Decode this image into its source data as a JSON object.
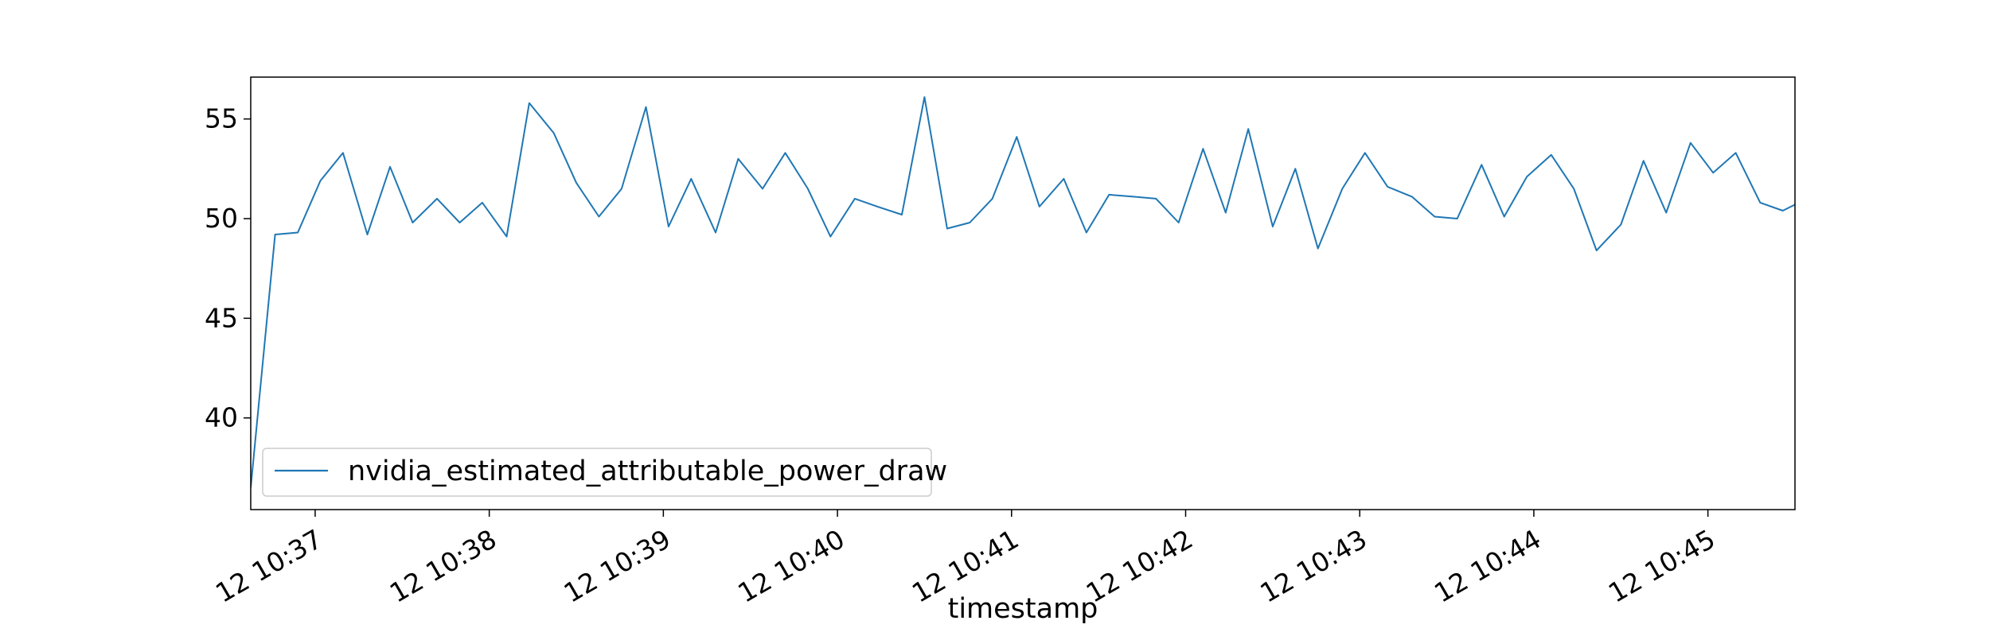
{
  "chart_data": {
    "type": "line",
    "xlabel": "timestamp",
    "ylabel": "",
    "x_tick_labels": [
      "12 10:37",
      "12 10:38",
      "12 10:39",
      "12 10:40",
      "12 10:41",
      "12 10:42",
      "12 10:43",
      "12 10:44",
      "12 10:45"
    ],
    "x_tick_minutes": [
      37,
      38,
      39,
      40,
      41,
      42,
      43,
      44,
      45
    ],
    "xlim_minutes": [
      36.63,
      45.5
    ],
    "x_unit": "minutes past 10:00 on day 12",
    "y_ticks": [
      40,
      45,
      50,
      55
    ],
    "ylim": [
      35.4,
      57.1
    ],
    "grid": false,
    "legend_position": "lower-left",
    "series": [
      {
        "name": "nvidia_estimated_attributable_power_draw",
        "color": "#1f77b4",
        "x": [
          36.63,
          36.77,
          36.9,
          37.03,
          37.16,
          37.3,
          37.43,
          37.56,
          37.7,
          37.83,
          37.96,
          38.1,
          38.23,
          38.37,
          38.5,
          38.63,
          38.76,
          38.9,
          39.03,
          39.16,
          39.3,
          39.43,
          39.57,
          39.7,
          39.83,
          39.96,
          40.1,
          40.23,
          40.37,
          40.5,
          40.63,
          40.76,
          40.89,
          41.03,
          41.16,
          41.3,
          41.43,
          41.56,
          41.7,
          41.83,
          41.96,
          42.1,
          42.23,
          42.36,
          42.5,
          42.63,
          42.76,
          42.9,
          43.03,
          43.16,
          43.3,
          43.43,
          43.56,
          43.7,
          43.83,
          43.96,
          44.1,
          44.23,
          44.36,
          44.5,
          44.63,
          44.76,
          44.9,
          45.03,
          45.16,
          45.3,
          45.43,
          45.5
        ],
        "y": [
          36.5,
          49.2,
          49.3,
          51.9,
          53.3,
          49.2,
          52.6,
          49.8,
          51.0,
          49.8,
          50.8,
          49.1,
          55.8,
          54.3,
          51.8,
          50.1,
          51.5,
          55.6,
          49.6,
          52.0,
          49.3,
          53.0,
          51.5,
          53.3,
          51.5,
          49.1,
          51.0,
          50.6,
          50.2,
          56.1,
          49.5,
          49.8,
          51.0,
          54.1,
          50.6,
          52.0,
          49.3,
          51.2,
          51.1,
          51.0,
          49.8,
          53.5,
          50.3,
          54.5,
          49.6,
          52.5,
          48.5,
          51.5,
          53.3,
          51.6,
          51.1,
          50.1,
          50.0,
          52.7,
          50.1,
          52.1,
          53.2,
          51.5,
          48.4,
          49.7,
          52.9,
          50.3,
          53.8,
          52.3,
          53.3,
          50.8,
          50.4,
          50.7
        ]
      }
    ]
  }
}
